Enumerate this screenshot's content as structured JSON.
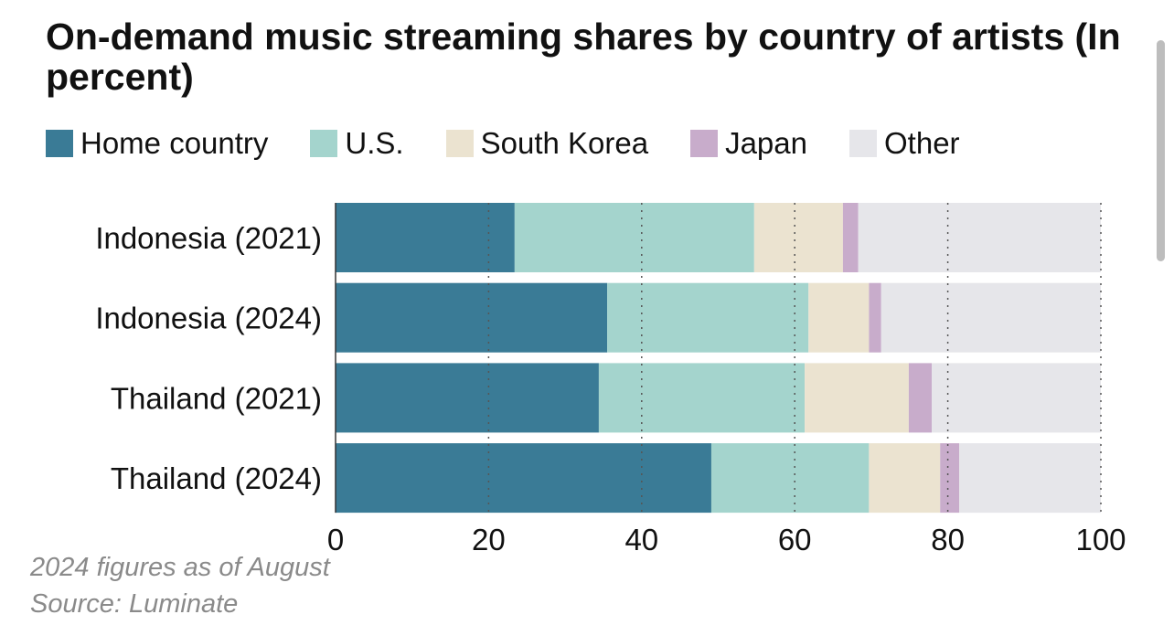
{
  "chart_data": {
    "type": "bar",
    "orientation": "horizontal",
    "stacked": true,
    "title": "On-demand music streaming shares by country of artists (In percent)",
    "categories": [
      "Indonesia (2021)",
      "Indonesia (2024)",
      "Thailand (2021)",
      "Thailand (2024)"
    ],
    "series": [
      {
        "name": "Home country",
        "color": "#3a7b96",
        "values": [
          23.4,
          35.5,
          34.4,
          49.1
        ]
      },
      {
        "name": "U.S.",
        "color": "#a4d4cd",
        "values": [
          31.3,
          26.3,
          26.9,
          20.6
        ]
      },
      {
        "name": "South Korea",
        "color": "#ebe3d0",
        "values": [
          11.6,
          7.9,
          13.6,
          9.3
        ]
      },
      {
        "name": "Japan",
        "color": "#c8accb",
        "values": [
          2.0,
          1.6,
          3.0,
          2.5
        ]
      },
      {
        "name": "Other",
        "color": "#e6e6ea",
        "values": [
          31.7,
          28.7,
          22.1,
          18.5
        ]
      }
    ],
    "xlim": [
      0,
      100
    ],
    "xticks": [
      "0",
      "20",
      "40",
      "60",
      "80",
      "100"
    ],
    "xtick_values": [
      0,
      20,
      40,
      60,
      80,
      100
    ],
    "grid": "vertical dotted",
    "legend": "top",
    "notes": [
      "2024 figures as of August",
      "Source: Luminate"
    ]
  }
}
